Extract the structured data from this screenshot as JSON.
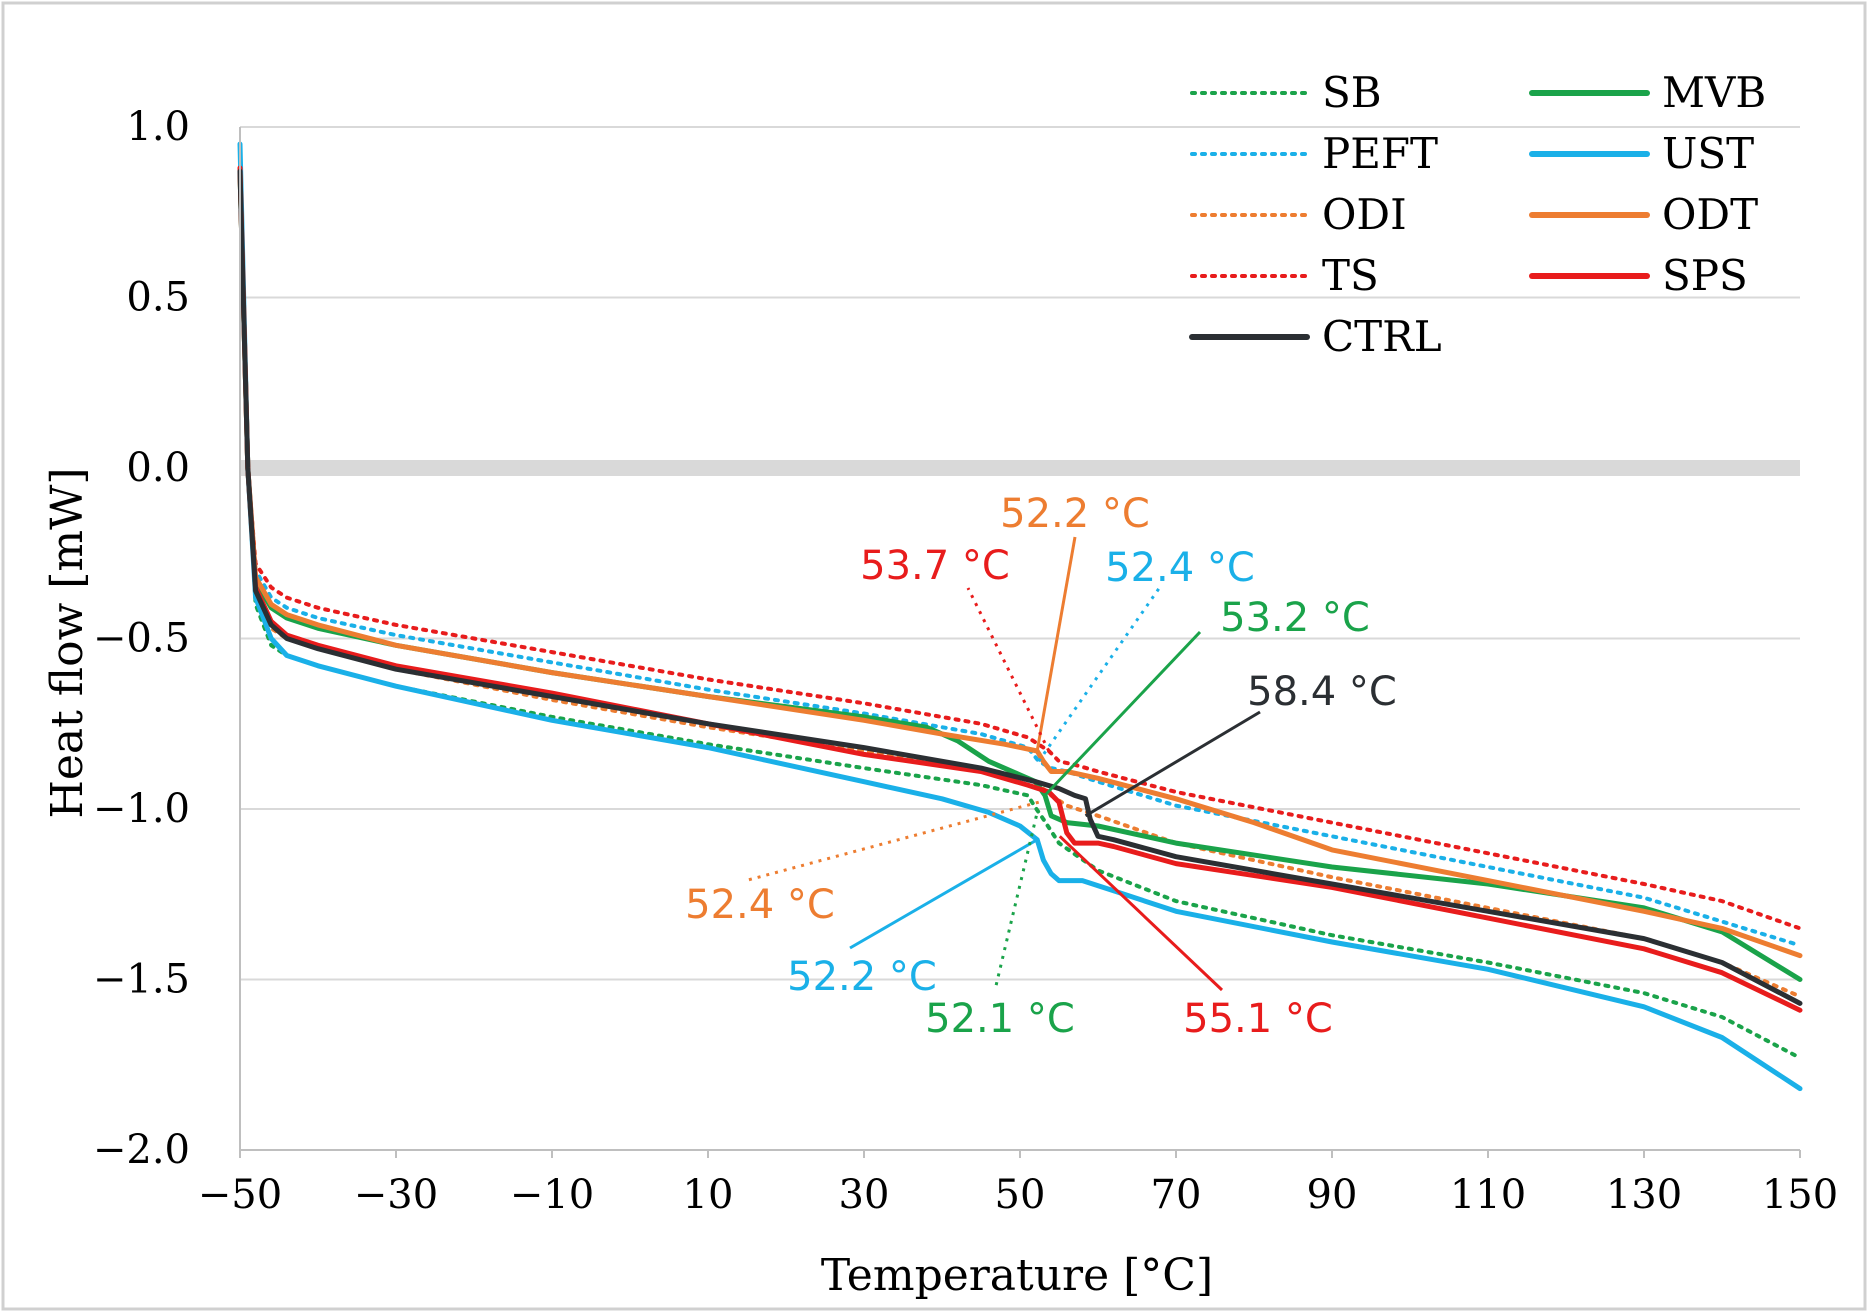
{
  "chart_data": {
    "type": "line",
    "title": "",
    "xlabel": "Temperature [°C]",
    "ylabel": "Heat flow [mW]",
    "xlim": [
      -50,
      150
    ],
    "ylim": [
      -2.0,
      1.0
    ],
    "xticks": [
      -50,
      -30,
      -10,
      10,
      30,
      50,
      70,
      90,
      110,
      130,
      150
    ],
    "xtick_labels": [
      "−50",
      "−30",
      "−10",
      "10",
      "30",
      "50",
      "70",
      "90",
      "110",
      "130",
      "150"
    ],
    "yticks": [
      1.0,
      0.5,
      0.0,
      -0.5,
      -1.0,
      -1.5,
      -2.0
    ],
    "ytick_labels": [
      "1.0",
      "0.5",
      "0.0",
      "−0.5",
      "−1.0",
      "−1.5",
      "−2.0"
    ],
    "grid": true,
    "zero_band": true,
    "legend_position": "top-right",
    "series": [
      {
        "name": "SB",
        "color": "#1aa34a",
        "style": "dotted",
        "points": [
          [
            -50,
            0.85
          ],
          [
            -49,
            0.0
          ],
          [
            -48,
            -0.4
          ],
          [
            -46,
            -0.52
          ],
          [
            -44,
            -0.55
          ],
          [
            -40,
            -0.58
          ],
          [
            -30,
            -0.64
          ],
          [
            -10,
            -0.73
          ],
          [
            10,
            -0.81
          ],
          [
            30,
            -0.88
          ],
          [
            45,
            -0.93
          ],
          [
            51,
            -0.96
          ],
          [
            52.1,
            -1.0
          ],
          [
            53,
            -1.03
          ],
          [
            55,
            -1.1
          ],
          [
            60,
            -1.18
          ],
          [
            70,
            -1.27
          ],
          [
            90,
            -1.37
          ],
          [
            110,
            -1.45
          ],
          [
            130,
            -1.54
          ],
          [
            140,
            -1.61
          ],
          [
            150,
            -1.73
          ]
        ]
      },
      {
        "name": "PEFT",
        "color": "#1ab0e8",
        "style": "dotted",
        "points": [
          [
            -50,
            0.88
          ],
          [
            -49,
            0.0
          ],
          [
            -48,
            -0.3
          ],
          [
            -46,
            -0.38
          ],
          [
            -44,
            -0.41
          ],
          [
            -40,
            -0.44
          ],
          [
            -30,
            -0.49
          ],
          [
            -10,
            -0.57
          ],
          [
            10,
            -0.65
          ],
          [
            30,
            -0.72
          ],
          [
            45,
            -0.78
          ],
          [
            51,
            -0.82
          ],
          [
            52.4,
            -0.86
          ],
          [
            54,
            -0.88
          ],
          [
            56,
            -0.89
          ],
          [
            60,
            -0.92
          ],
          [
            70,
            -0.99
          ],
          [
            90,
            -1.08
          ],
          [
            110,
            -1.17
          ],
          [
            130,
            -1.26
          ],
          [
            150,
            -1.4
          ]
        ]
      },
      {
        "name": "ODI",
        "color": "#ed7d31",
        "style": "dotted",
        "points": [
          [
            -50,
            0.86
          ],
          [
            -49,
            0.0
          ],
          [
            -48,
            -0.38
          ],
          [
            -46,
            -0.47
          ],
          [
            -44,
            -0.5
          ],
          [
            -40,
            -0.53
          ],
          [
            -30,
            -0.59
          ],
          [
            -10,
            -0.68
          ],
          [
            10,
            -0.76
          ],
          [
            30,
            -0.83
          ],
          [
            45,
            -0.88
          ],
          [
            51,
            -0.91
          ],
          [
            52.4,
            -0.93
          ],
          [
            54,
            -0.96
          ],
          [
            56,
            -0.99
          ],
          [
            60,
            -1.02
          ],
          [
            70,
            -1.1
          ],
          [
            90,
            -1.2
          ],
          [
            110,
            -1.29
          ],
          [
            130,
            -1.38
          ],
          [
            140,
            -1.45
          ],
          [
            150,
            -1.55
          ]
        ]
      },
      {
        "name": "TS",
        "color": "#e81c1c",
        "style": "dotted",
        "points": [
          [
            -50,
            0.87
          ],
          [
            -49,
            0.0
          ],
          [
            -48,
            -0.28
          ],
          [
            -46,
            -0.35
          ],
          [
            -44,
            -0.38
          ],
          [
            -40,
            -0.41
          ],
          [
            -30,
            -0.46
          ],
          [
            -10,
            -0.54
          ],
          [
            10,
            -0.62
          ],
          [
            30,
            -0.69
          ],
          [
            45,
            -0.75
          ],
          [
            51,
            -0.79
          ],
          [
            53.7,
            -0.83
          ],
          [
            55,
            -0.86
          ],
          [
            57,
            -0.87
          ],
          [
            60,
            -0.89
          ],
          [
            70,
            -0.95
          ],
          [
            90,
            -1.04
          ],
          [
            110,
            -1.13
          ],
          [
            130,
            -1.22
          ],
          [
            140,
            -1.27
          ],
          [
            150,
            -1.35
          ]
        ]
      },
      {
        "name": "MVB",
        "color": "#1aa34a",
        "style": "solid",
        "points": [
          [
            -50,
            0.87
          ],
          [
            -49,
            0.0
          ],
          [
            -48,
            -0.33
          ],
          [
            -46,
            -0.41
          ],
          [
            -44,
            -0.44
          ],
          [
            -40,
            -0.47
          ],
          [
            -30,
            -0.52
          ],
          [
            -10,
            -0.6
          ],
          [
            10,
            -0.67
          ],
          [
            30,
            -0.73
          ],
          [
            38,
            -0.76
          ],
          [
            42,
            -0.8
          ],
          [
            46,
            -0.86
          ],
          [
            50,
            -0.9
          ],
          [
            52,
            -0.92
          ],
          [
            53.2,
            -0.96
          ],
          [
            54,
            -1.02
          ],
          [
            56,
            -1.04
          ],
          [
            60,
            -1.05
          ],
          [
            70,
            -1.1
          ],
          [
            90,
            -1.17
          ],
          [
            110,
            -1.22
          ],
          [
            130,
            -1.29
          ],
          [
            140,
            -1.36
          ],
          [
            150,
            -1.5
          ]
        ]
      },
      {
        "name": "UST",
        "color": "#1ab0e8",
        "style": "solid",
        "points": [
          [
            -50,
            0.95
          ],
          [
            -49,
            0.0
          ],
          [
            -48,
            -0.38
          ],
          [
            -46,
            -0.5
          ],
          [
            -44,
            -0.55
          ],
          [
            -40,
            -0.58
          ],
          [
            -30,
            -0.64
          ],
          [
            -10,
            -0.74
          ],
          [
            10,
            -0.82
          ],
          [
            30,
            -0.92
          ],
          [
            40,
            -0.97
          ],
          [
            46,
            -1.01
          ],
          [
            50,
            -1.05
          ],
          [
            52.2,
            -1.09
          ],
          [
            53,
            -1.15
          ],
          [
            54,
            -1.19
          ],
          [
            55,
            -1.21
          ],
          [
            58,
            -1.21
          ],
          [
            62,
            -1.24
          ],
          [
            70,
            -1.3
          ],
          [
            90,
            -1.39
          ],
          [
            110,
            -1.47
          ],
          [
            130,
            -1.58
          ],
          [
            140,
            -1.67
          ],
          [
            150,
            -1.82
          ]
        ]
      },
      {
        "name": "ODT",
        "color": "#ed7d31",
        "style": "solid",
        "points": [
          [
            -50,
            0.87
          ],
          [
            -49,
            0.0
          ],
          [
            -48,
            -0.32
          ],
          [
            -46,
            -0.4
          ],
          [
            -44,
            -0.43
          ],
          [
            -40,
            -0.46
          ],
          [
            -30,
            -0.52
          ],
          [
            -10,
            -0.6
          ],
          [
            10,
            -0.67
          ],
          [
            30,
            -0.74
          ],
          [
            40,
            -0.78
          ],
          [
            48,
            -0.81
          ],
          [
            52.2,
            -0.83
          ],
          [
            53,
            -0.86
          ],
          [
            54,
            -0.89
          ],
          [
            56,
            -0.89
          ],
          [
            60,
            -0.91
          ],
          [
            70,
            -0.97
          ],
          [
            80,
            -1.04
          ],
          [
            90,
            -1.12
          ],
          [
            110,
            -1.21
          ],
          [
            130,
            -1.3
          ],
          [
            140,
            -1.35
          ],
          [
            150,
            -1.43
          ]
        ]
      },
      {
        "name": "SPS",
        "color": "#e81c1c",
        "style": "solid",
        "points": [
          [
            -50,
            0.88
          ],
          [
            -49,
            0.0
          ],
          [
            -48,
            -0.35
          ],
          [
            -46,
            -0.45
          ],
          [
            -44,
            -0.49
          ],
          [
            -40,
            -0.52
          ],
          [
            -30,
            -0.58
          ],
          [
            -10,
            -0.66
          ],
          [
            10,
            -0.75
          ],
          [
            30,
            -0.84
          ],
          [
            45,
            -0.89
          ],
          [
            51,
            -0.93
          ],
          [
            53.7,
            -0.95
          ],
          [
            55,
            -0.98
          ],
          [
            56,
            -1.07
          ],
          [
            57,
            -1.1
          ],
          [
            60,
            -1.1
          ],
          [
            62,
            -1.11
          ],
          [
            70,
            -1.16
          ],
          [
            90,
            -1.23
          ],
          [
            110,
            -1.32
          ],
          [
            130,
            -1.41
          ],
          [
            140,
            -1.48
          ],
          [
            150,
            -1.59
          ]
        ]
      },
      {
        "name": "CTRL",
        "color": "#2b2f33",
        "style": "solid",
        "points": [
          [
            -50,
            0.87
          ],
          [
            -49,
            0.0
          ],
          [
            -48,
            -0.36
          ],
          [
            -46,
            -0.46
          ],
          [
            -44,
            -0.5
          ],
          [
            -40,
            -0.53
          ],
          [
            -30,
            -0.59
          ],
          [
            -10,
            -0.67
          ],
          [
            10,
            -0.75
          ],
          [
            30,
            -0.82
          ],
          [
            45,
            -0.88
          ],
          [
            52,
            -0.92
          ],
          [
            55,
            -0.94
          ],
          [
            57,
            -0.96
          ],
          [
            58.4,
            -0.97
          ],
          [
            59,
            -1.03
          ],
          [
            60,
            -1.08
          ],
          [
            62,
            -1.09
          ],
          [
            70,
            -1.14
          ],
          [
            90,
            -1.22
          ],
          [
            110,
            -1.3
          ],
          [
            130,
            -1.38
          ],
          [
            140,
            -1.45
          ],
          [
            150,
            -1.57
          ]
        ]
      }
    ],
    "annotations": [
      {
        "text": "52.2 °C",
        "color": "#ed7d31",
        "style": "solid",
        "point": [
          52.2,
          -0.83
        ]
      },
      {
        "text": "53.7 °C",
        "color": "#e81c1c",
        "style": "dotted",
        "point": [
          53.7,
          -0.83
        ]
      },
      {
        "text": "52.4 °C",
        "color": "#1ab0e8",
        "style": "dotted",
        "point": [
          52.4,
          -0.86
        ]
      },
      {
        "text": "53.2 °C",
        "color": "#1aa34a",
        "style": "solid",
        "point": [
          53.2,
          -0.96
        ]
      },
      {
        "text": "58.4 °C",
        "color": "#2b2f33",
        "style": "solid",
        "point": [
          58.4,
          -1.02
        ]
      },
      {
        "text": "52.4 °C",
        "color": "#ed7d31",
        "style": "dotted",
        "point": [
          52.4,
          -0.98
        ]
      },
      {
        "text": "52.2 °C",
        "color": "#1ab0e8",
        "style": "solid",
        "point": [
          52.2,
          -1.09
        ]
      },
      {
        "text": "52.1 °C",
        "color": "#1aa34a",
        "style": "dotted",
        "point": [
          52.1,
          -1.02
        ]
      },
      {
        "text": "55.1 °C",
        "color": "#e81c1c",
        "style": "solid",
        "point": [
          55.1,
          -1.08
        ]
      }
    ]
  }
}
